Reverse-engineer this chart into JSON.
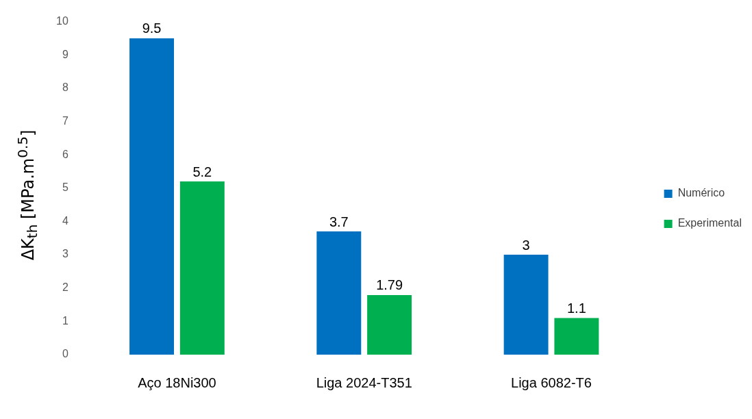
{
  "chart_data": {
    "type": "bar",
    "ylabel": "ΔK$_{th}$ [MPa.m$^{0.5}$]",
    "categories": [
      "Aço 18Ni300",
      "Liga 2024-T351",
      "Liga 6082-T6"
    ],
    "series": [
      {
        "name": "Numérico",
        "color": "#0070c0",
        "values": [
          9.5,
          3.7,
          3
        ]
      },
      {
        "name": "Experimental",
        "color": "#00b050",
        "values": [
          5.2,
          1.79,
          1.1
        ]
      }
    ],
    "ylim": [
      0,
      10
    ],
    "yticks": [
      0,
      1,
      2,
      3,
      4,
      5,
      6,
      7,
      8,
      9,
      10
    ],
    "grid": false,
    "legend": "right",
    "data_labels": true
  }
}
